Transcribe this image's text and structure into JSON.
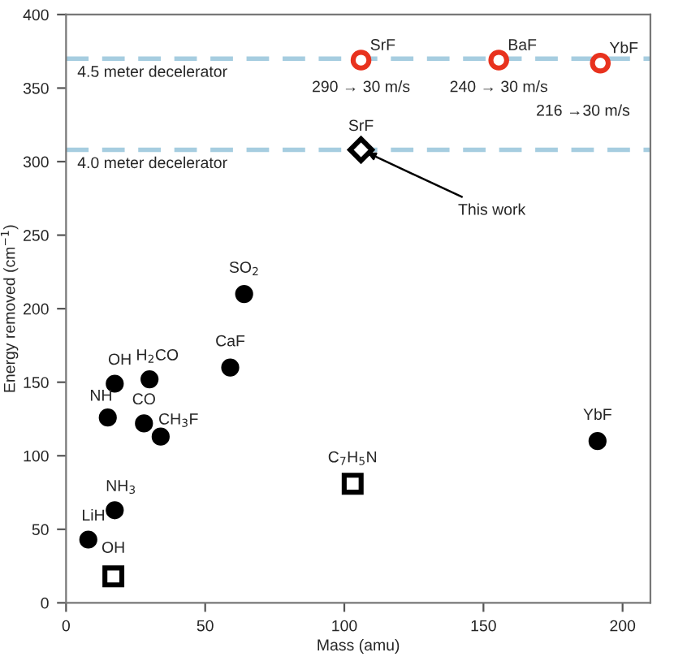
{
  "chart_data": {
    "type": "scatter",
    "xlabel": "Mass (amu)",
    "ylabel": "Energy removed (cm$^{−1}$)",
    "xlim": [
      0,
      210
    ],
    "ylim": [
      0,
      400
    ],
    "xticks": [
      0,
      50,
      100,
      150,
      200
    ],
    "yticks": [
      0,
      50,
      100,
      150,
      200,
      250,
      300,
      350,
      400
    ],
    "grid": false,
    "legend": false,
    "series": [
      {
        "type": "scatter",
        "marker": "circle",
        "color": "#000000",
        "x": [
          8,
          17.5,
          17.5,
          15,
          30,
          28,
          34,
          59,
          64,
          191
        ],
        "values": [
          43,
          63,
          149,
          126,
          152,
          122,
          113,
          160,
          210,
          110
        ]
      },
      {
        "type": "scatter",
        "marker": "square",
        "color": "#000000",
        "x": [
          17,
          103
        ],
        "values": [
          18,
          81
        ]
      },
      {
        "type": "scatter",
        "marker": "circle",
        "color": "#e8321e",
        "x": [
          106,
          155.5,
          192
        ],
        "values": [
          369,
          369,
          367
        ]
      },
      {
        "type": "scatter",
        "marker": "diamond",
        "color": "#000000",
        "x": [
          106
        ],
        "values": [
          308
        ]
      }
    ],
    "ref_lines": [
      {
        "axis": "y",
        "value": 370,
        "label": "4.5 meter decelerator",
        "color": "#a6cde0",
        "line_style": "dashed"
      },
      {
        "axis": "y",
        "value": 308,
        "label": "4.0 meter decelerator",
        "color": "#a6cde0",
        "line_style": "dashed"
      }
    ],
    "annotations": [
      {
        "text": "SrF",
        "x": 106,
        "y": 369
      },
      {
        "text": "BaF",
        "x": 155.5,
        "y": 369
      },
      {
        "text": "YbF",
        "x": 192,
        "y": 367
      },
      {
        "text": "290 → 30 m/s",
        "x": 106,
        "y": 369
      },
      {
        "text": "240 → 30 m/s",
        "x": 155.5,
        "y": 369
      },
      "216 →30 m/s",
      {
        "text": "SrF",
        "x": 106,
        "y": 308
      },
      {
        "text": "This work",
        "x": 106,
        "y": 308
      },
      {
        "text": "SO$_{2}$",
        "x": 64,
        "y": 210
      },
      {
        "text": "CaF",
        "x": 59,
        "y": 160
      },
      {
        "text": "OH",
        "x": 17.5,
        "y": 149
      },
      {
        "text": "H$_{2}$CO",
        "x": 30,
        "y": 152
      },
      {
        "text": "NH",
        "x": 15,
        "y": 126
      },
      {
        "text": "CO",
        "x": 28,
        "y": 122
      },
      {
        "text": "CH$_{3}$F",
        "x": 34,
        "y": 113
      },
      {
        "text": "YbF",
        "x": 191,
        "y": 110
      },
      {
        "text": "NH$_{3}$",
        "x": 17.5,
        "y": 63
      },
      {
        "text": "LiH",
        "x": 8,
        "y": 43
      },
      {
        "text": "C$_{7}$H$_{5}$N",
        "x": 103,
        "y": 81
      },
      {
        "text": "OH",
        "x": 17,
        "y": 18
      }
    ]
  }
}
